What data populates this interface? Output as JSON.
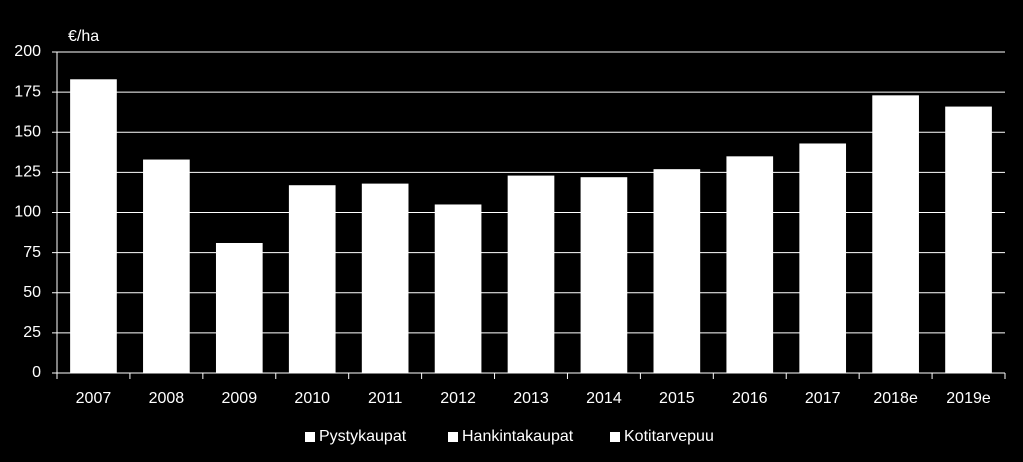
{
  "chart_data": {
    "type": "bar",
    "y_axis_label": "€/ha",
    "categories": [
      "2007",
      "2008",
      "2009",
      "2010",
      "2011",
      "2012",
      "2013",
      "2014",
      "2015",
      "2016",
      "2017",
      "2018e",
      "2019e"
    ],
    "values": [
      183,
      133,
      81,
      117,
      118,
      105,
      123,
      122,
      127,
      135,
      143,
      173,
      166
    ],
    "color": "#ffffff",
    "ylim": [
      0,
      200
    ],
    "yticks": [
      0,
      25,
      50,
      75,
      100,
      125,
      150,
      175,
      200
    ],
    "grid": true,
    "legend": [
      {
        "name": "Pystykaupat",
        "color": "#ffffff"
      },
      {
        "name": "Hankintakaupat",
        "color": "#ffffff"
      },
      {
        "name": "Kotitarvepuu",
        "color": "#ffffff"
      }
    ],
    "legend_position": "bottom"
  }
}
